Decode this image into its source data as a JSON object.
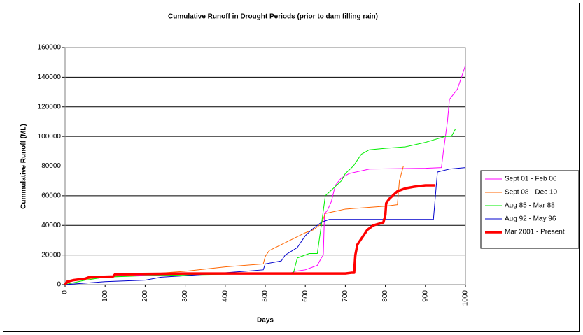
{
  "chart_data": {
    "type": "line",
    "title": "Cumulative Runoff in Drought Periods  (prior to dam filling rain)",
    "x_label": "Days",
    "y_label": "Cummulative Runoff (ML)",
    "xlim": [
      0,
      1000
    ],
    "xticks": [
      0,
      100,
      200,
      300,
      400,
      500,
      600,
      700,
      800,
      900,
      1000
    ],
    "ylim": [
      0,
      160000
    ],
    "yticks": [
      0,
      20000,
      40000,
      60000,
      80000,
      100000,
      120000,
      140000,
      160000
    ],
    "grid": true,
    "legend": "right",
    "series": [
      {
        "name": "Sept 01 - Feb 06",
        "color": "#ff00ff",
        "width": 1,
        "x": [
          0,
          10,
          50,
          100,
          130,
          300,
          560,
          575,
          600,
          630,
          640,
          645,
          648,
          655,
          665,
          675,
          690,
          710,
          760,
          900,
          940,
          945,
          955,
          960,
          980,
          990,
          1000
        ],
        "values": [
          0,
          2500,
          4000,
          5000,
          6000,
          7000,
          7500,
          9000,
          10000,
          13000,
          18000,
          20000,
          48000,
          50000,
          56000,
          67000,
          72000,
          75000,
          78000,
          78500,
          79000,
          90000,
          110000,
          125000,
          132000,
          140000,
          148000
        ]
      },
      {
        "name": "Sept 08 - Dec 10",
        "color": "#ff6600",
        "width": 1,
        "x": [
          0,
          20,
          100,
          200,
          300,
          400,
          495,
          500,
          510,
          540,
          570,
          600,
          620,
          640,
          650,
          700,
          750,
          800,
          830,
          835,
          845,
          850
        ],
        "values": [
          0,
          3000,
          5000,
          7000,
          9000,
          12000,
          14000,
          19000,
          23000,
          27000,
          31000,
          35000,
          37000,
          41000,
          48000,
          51000,
          52000,
          53000,
          54000,
          70000,
          80000,
          80000
        ]
      },
      {
        "name": "Aug 85 - Mar 88",
        "color": "#00ee00",
        "width": 1,
        "x": [
          0,
          50,
          100,
          200,
          400,
          570,
          580,
          610,
          630,
          640,
          650,
          670,
          690,
          700,
          720,
          740,
          760,
          800,
          850,
          900,
          950,
          965,
          975
        ],
        "values": [
          0,
          3000,
          5000,
          6000,
          7000,
          7500,
          18000,
          21000,
          21000,
          40000,
          60000,
          65000,
          70000,
          75000,
          80000,
          88000,
          91000,
          92000,
          93000,
          96000,
          100000,
          100000,
          105000
        ]
      },
      {
        "name": "Aug 92 - May 96",
        "color": "#0000cc",
        "width": 1,
        "x": [
          0,
          50,
          100,
          200,
          240,
          300,
          350,
          400,
          450,
          495,
          500,
          540,
          550,
          580,
          600,
          620,
          640,
          660,
          700,
          850,
          920,
          925,
          930,
          960,
          1000
        ],
        "values": [
          0,
          1000,
          2000,
          3000,
          5000,
          6000,
          7000,
          8000,
          9000,
          10000,
          14000,
          16000,
          20000,
          25000,
          33000,
          38000,
          42000,
          44000,
          44000,
          44000,
          44000,
          60000,
          76000,
          78000,
          79000
        ]
      },
      {
        "name": "Mar 2001 - Present",
        "color": "#ff0000",
        "width": 3.5,
        "x": [
          0,
          5,
          20,
          50,
          60,
          120,
          125,
          300,
          500,
          700,
          715,
          722,
          725,
          730,
          745,
          755,
          770,
          795,
          800,
          802,
          810,
          830,
          850,
          870,
          900,
          925
        ],
        "values": [
          0,
          2000,
          3000,
          4000,
          5000,
          5500,
          7000,
          7500,
          7500,
          7500,
          8000,
          8000,
          20000,
          27000,
          33000,
          37000,
          40000,
          42000,
          47000,
          55000,
          58000,
          63000,
          65000,
          66000,
          67000,
          67000
        ]
      }
    ]
  }
}
